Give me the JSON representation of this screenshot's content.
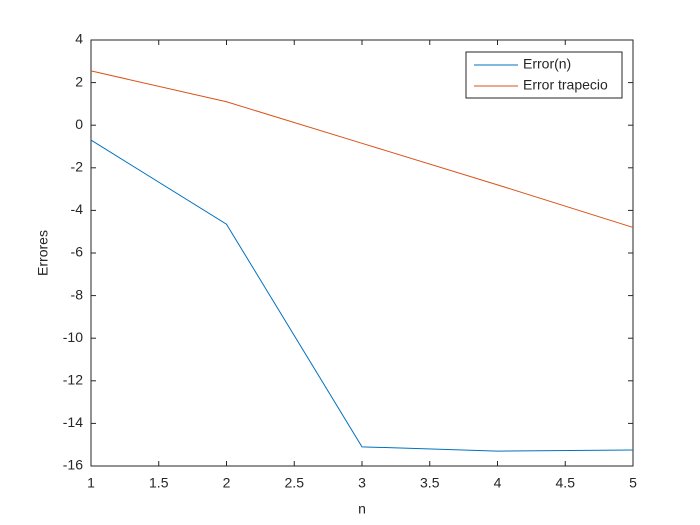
{
  "chart_data": {
    "type": "line",
    "xlabel": "n",
    "ylabel": "Errores",
    "x": [
      1,
      2,
      3,
      4,
      5
    ],
    "series": [
      {
        "name": "Error(n)",
        "color": "#0072bd",
        "values": [
          -0.7,
          -4.65,
          -15.1,
          -15.3,
          -15.25
        ]
      },
      {
        "name": "Error trapecio",
        "color": "#d95319",
        "values": [
          2.55,
          1.1,
          -0.85,
          -2.8,
          -4.8
        ]
      }
    ],
    "xlim": [
      1,
      5
    ],
    "xticks": [
      1,
      1.5,
      2,
      2.5,
      3,
      3.5,
      4,
      4.5,
      5
    ],
    "ylim": [
      -16,
      4
    ],
    "yticks": [
      -16,
      -14,
      -12,
      -10,
      -8,
      -6,
      -4,
      -2,
      0,
      2,
      4
    ],
    "grid": false,
    "legend": "northeast"
  }
}
